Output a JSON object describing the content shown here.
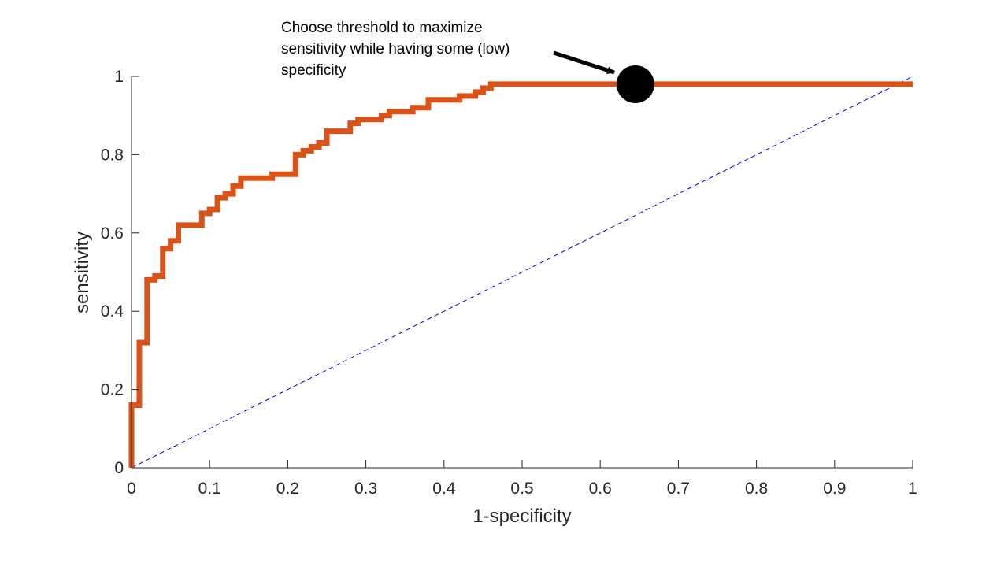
{
  "chart_data": {
    "type": "line",
    "xlabel": "1-specificity",
    "ylabel": "sensitivity",
    "xlim": [
      0,
      1
    ],
    "ylim": [
      0,
      1
    ],
    "xticks": [
      "0",
      "0.1",
      "0.2",
      "0.3",
      "0.4",
      "0.5",
      "0.6",
      "0.7",
      "0.8",
      "0.9",
      "1"
    ],
    "yticks": [
      "0",
      "0.2",
      "0.4",
      "0.6",
      "0.8",
      "1"
    ],
    "grid": false,
    "series": [
      {
        "color": "#D95319",
        "style": "solid",
        "x": [
          0,
          0,
          0.01,
          0.01,
          0.02,
          0.02,
          0.03,
          0.03,
          0.04,
          0.04,
          0.05,
          0.05,
          0.06,
          0.06,
          0.09,
          0.09,
          0.1,
          0.1,
          0.11,
          0.11,
          0.12,
          0.12,
          0.13,
          0.13,
          0.14,
          0.14,
          0.18,
          0.18,
          0.21,
          0.21,
          0.22,
          0.22,
          0.23,
          0.23,
          0.24,
          0.24,
          0.25,
          0.25,
          0.28,
          0.28,
          0.29,
          0.29,
          0.32,
          0.32,
          0.33,
          0.33,
          0.36,
          0.36,
          0.38,
          0.38,
          0.42,
          0.42,
          0.44,
          0.44,
          0.45,
          0.45,
          0.46,
          0.46,
          1
        ],
        "y": [
          0,
          0.16,
          0.16,
          0.32,
          0.32,
          0.48,
          0.48,
          0.49,
          0.49,
          0.56,
          0.56,
          0.58,
          0.58,
          0.62,
          0.62,
          0.65,
          0.65,
          0.66,
          0.66,
          0.69,
          0.69,
          0.7,
          0.7,
          0.72,
          0.72,
          0.74,
          0.74,
          0.75,
          0.75,
          0.8,
          0.8,
          0.81,
          0.81,
          0.82,
          0.82,
          0.83,
          0.83,
          0.86,
          0.86,
          0.88,
          0.88,
          0.89,
          0.89,
          0.9,
          0.9,
          0.91,
          0.91,
          0.92,
          0.92,
          0.94,
          0.94,
          0.95,
          0.95,
          0.96,
          0.96,
          0.97,
          0.97,
          0.98,
          0.98
        ]
      },
      {
        "color": "#0000FF",
        "style": "dashed",
        "x": [
          0,
          1
        ],
        "y": [
          0,
          1
        ]
      }
    ],
    "marker": {
      "x": 0.645,
      "y": 0.98,
      "color": "#000000"
    },
    "annotation": {
      "lines": [
        "Choose threshold to maximize",
        "sensitivity while having some (low)",
        "specificity"
      ]
    }
  }
}
